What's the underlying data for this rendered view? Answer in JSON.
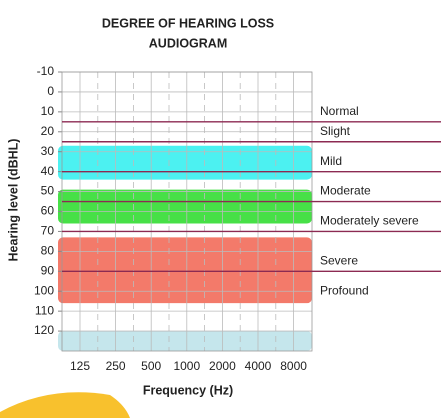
{
  "chart_data": {
    "type": "audiogram",
    "title": "DEGREE OF HEARING LOSS",
    "subtitle": "AUDIOGRAM",
    "ylabel": "Hearing level (dBHL)",
    "xlabel": "Frequency (Hz)",
    "categories": [
      "125",
      "250",
      "500",
      "1000",
      "2000",
      "4000",
      "8000"
    ],
    "ylim": [
      -10,
      130
    ],
    "yticks": [
      -10,
      0,
      10,
      20,
      30,
      40,
      50,
      60,
      70,
      80,
      90,
      100,
      110,
      120
    ],
    "grid": true,
    "degrees": [
      {
        "name": "Normal",
        "from": -10,
        "to": 15
      },
      {
        "name": "Slight",
        "from": 15,
        "to": 25
      },
      {
        "name": "Mild",
        "from": 25,
        "to": 40
      },
      {
        "name": "Moderate",
        "from": 40,
        "to": 55
      },
      {
        "name": "Moderately severe",
        "from": 55,
        "to": 70
      },
      {
        "name": "Severe",
        "from": 70,
        "to": 90
      },
      {
        "name": "Profound",
        "from": 90,
        "to": 120
      }
    ],
    "line_color": "#8c2a52",
    "bands": [
      {
        "from": 27,
        "to": 44,
        "color": "#38f0f0"
      },
      {
        "from": 49,
        "to": 66,
        "color": "#33dd33"
      },
      {
        "from": 73,
        "to": 106,
        "color": "#f26b5a"
      },
      {
        "from": 120,
        "to": 130,
        "color": "#bfe3ea"
      }
    ]
  }
}
